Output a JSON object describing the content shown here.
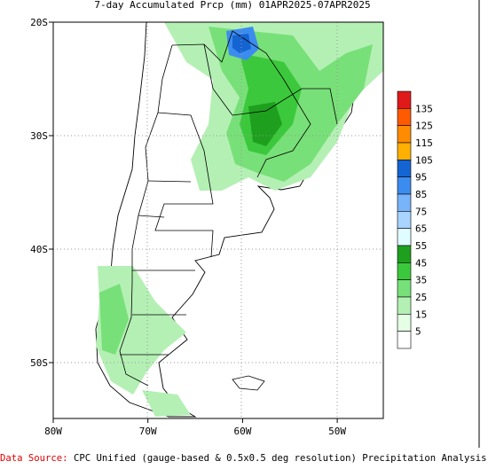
{
  "title": "7-day Accumulated Prcp (mm) 01APR2025-07APR2025",
  "lat_labels": [
    "20S",
    "30S",
    "40S",
    "50S"
  ],
  "lon_labels": [
    "80W",
    "70W",
    "60W",
    "50W"
  ],
  "colorbar": {
    "labels": [
      "135",
      "125",
      "115",
      "105",
      "95",
      "85",
      "75",
      "65",
      "55",
      "45",
      "35",
      "25",
      "15",
      "5"
    ],
    "colors": [
      "#e01a1a",
      "#ff5a00",
      "#ff8c00",
      "#ffb000",
      "#1464d2",
      "#3c8cf0",
      "#78b4fa",
      "#a8d4ff",
      "#e0fcff",
      "#1ea01e",
      "#3cc83c",
      "#78e078",
      "#b4f0b4",
      "#e4ffe4",
      "#ffffff"
    ]
  },
  "source": {
    "label": "Data Source:",
    "text": "CPC Unified (gauge-based & 0.5x0.5 deg resolution) Precipitation Analysis"
  }
}
